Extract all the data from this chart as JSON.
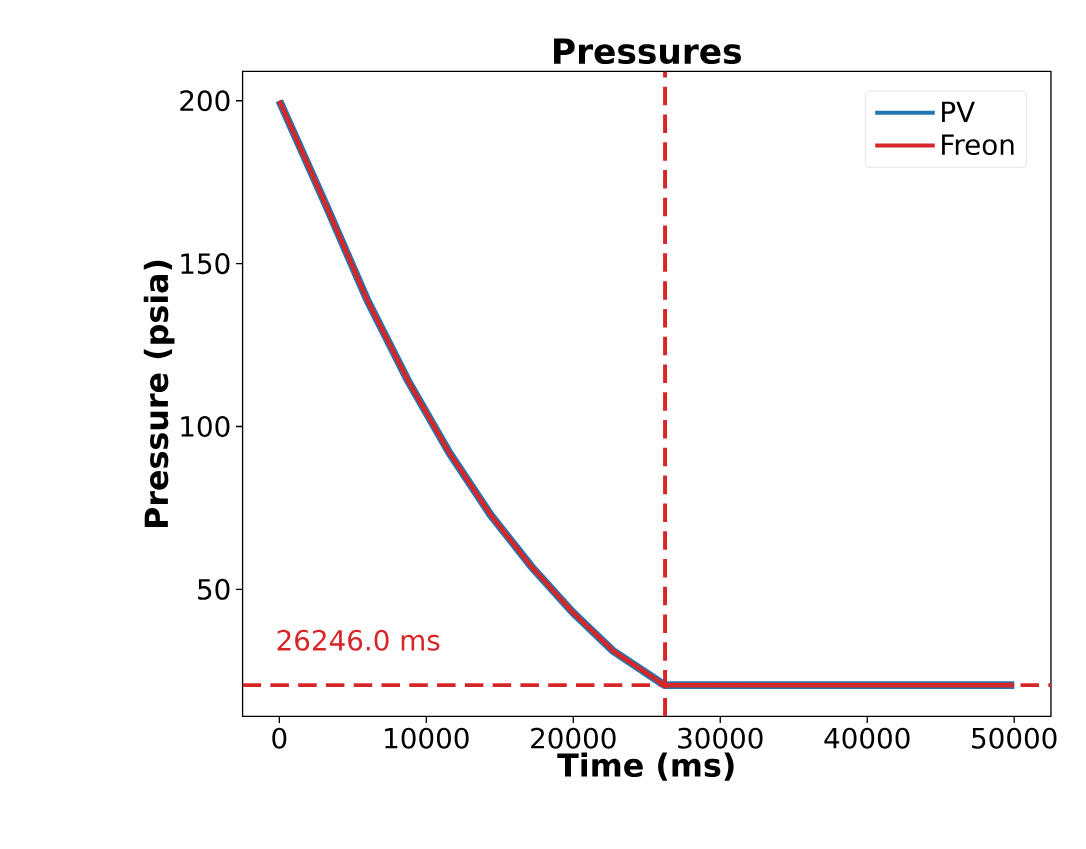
{
  "chart_data": {
    "type": "line",
    "title": "Pressures",
    "xlabel": "Time (ms)",
    "ylabel": "Pressure (psia)",
    "x": [
      0,
      3167,
      5964,
      8760,
      11556,
      14353,
      17150,
      19946,
      22740,
      26078,
      26246,
      50000
    ],
    "series": [
      {
        "name": "PV",
        "color": "#1f77b4",
        "values": [
          200,
          168,
          139,
          114,
          92,
          73,
          57,
          43,
          31,
          21,
          20.6,
          20.6
        ]
      },
      {
        "name": "Freon",
        "color": "#d62728",
        "values": [
          200,
          168,
          139,
          114,
          92,
          73,
          57,
          43,
          31,
          21,
          20.6,
          20.6
        ]
      }
    ],
    "xlim": [
      -2500,
      52500
    ],
    "ylim": [
      11,
      209
    ],
    "xticks": [
      0,
      10000,
      20000,
      30000,
      40000,
      50000
    ],
    "yticks": [
      50,
      100,
      150,
      200
    ],
    "ref_lines": [
      {
        "axis": "x",
        "value": 26246,
        "label": "26246.0 ms",
        "color": "#d62728",
        "line_style": "dashed"
      },
      {
        "axis": "y",
        "value": 20.6,
        "color": "#d62728",
        "line_style": "dashed"
      }
    ],
    "grid": false,
    "legend": "top right",
    "marker": "none",
    "line_style": "solid"
  }
}
